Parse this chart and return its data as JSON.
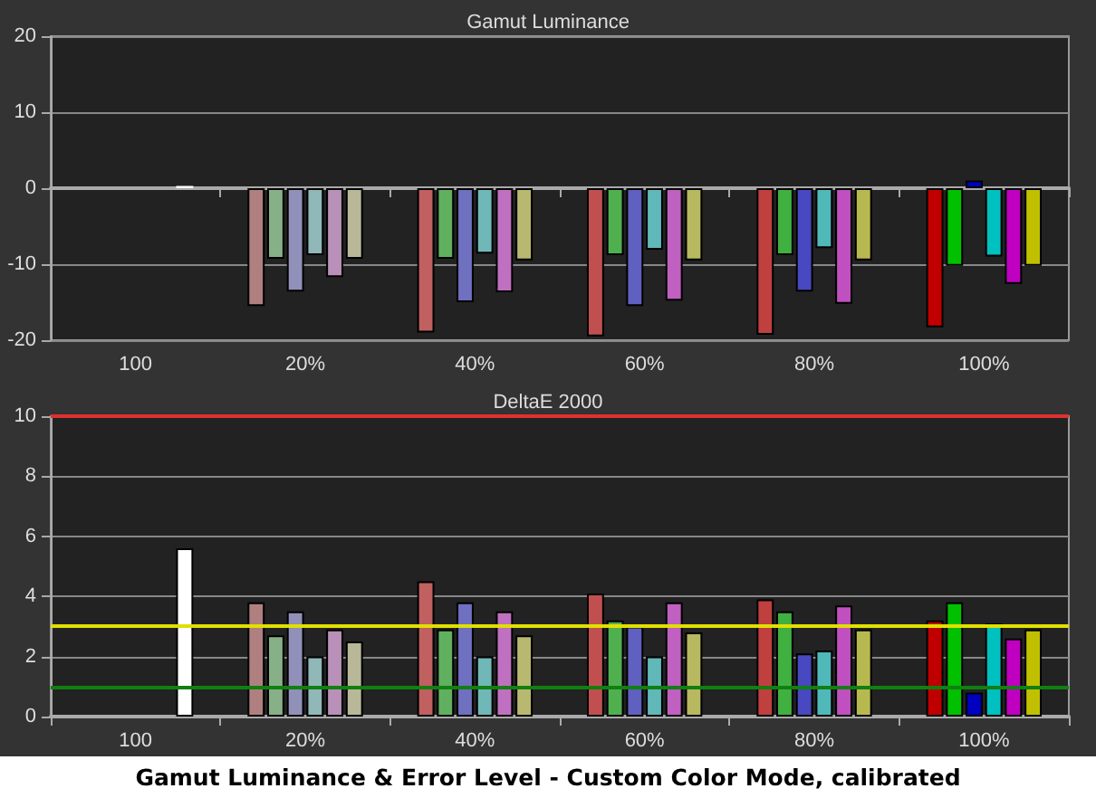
{
  "chart_data": [
    {
      "type": "bar",
      "title": "Gamut Luminance",
      "categories": [
        "100",
        "20%",
        "40%",
        "60%",
        "80%",
        "100%"
      ],
      "ylim": [
        -20,
        20
      ],
      "yticks": [
        -20,
        -10,
        0,
        10,
        20
      ],
      "grid": "y",
      "series": [
        {
          "colors": [
            "#b08080",
            "#b08080",
            "#c06060",
            "#c05050",
            "#c04040",
            "#c00000"
          ],
          "values": [
            null,
            -15.5,
            -19.0,
            -19.5,
            -19.3,
            -18.3
          ]
        },
        {
          "colors": [
            "#88b088",
            "#88b088",
            "#60b060",
            "#50b050",
            "#40b040",
            "#00c000"
          ],
          "values": [
            null,
            -9.3,
            -9.3,
            -8.8,
            -8.8,
            -10.2
          ]
        },
        {
          "colors": [
            "#9090b8",
            "#9090b8",
            "#7070c0",
            "#6060c0",
            "#4848c0",
            "#0000c0"
          ],
          "values": [
            null,
            -13.6,
            -15.0,
            -15.5,
            -13.6,
            1.0
          ]
        },
        {
          "colors": [
            "#90b8b8",
            "#90b8b8",
            "#70b8b8",
            "#60b8b8",
            "#50b8b8",
            "#00c0c0"
          ],
          "values": [
            null,
            -8.8,
            -8.6,
            -8.1,
            -7.9,
            -9.0
          ]
        },
        {
          "colors": [
            "#b890b8",
            "#b890b8",
            "#c070c0",
            "#c060c0",
            "#c050c0",
            "#c000c0"
          ],
          "values": [
            null,
            -11.7,
            -13.7,
            -14.8,
            -15.2,
            -12.6
          ]
        },
        {
          "colors": [
            "#ffffff",
            "#b8b898",
            "#b8b870",
            "#b8b860",
            "#b8b850",
            "#c0c000"
          ],
          "values": [
            0.3,
            -9.3,
            -9.5,
            -9.5,
            -9.5,
            -10.2
          ]
        }
      ]
    },
    {
      "type": "bar",
      "title": "DeltaE 2000",
      "categories": [
        "100",
        "20%",
        "40%",
        "60%",
        "80%",
        "100%"
      ],
      "ylim": [
        0,
        10
      ],
      "yticks": [
        0,
        2,
        4,
        6,
        8,
        10
      ],
      "grid": "y",
      "annotations": [
        "Gamut Luminance & Error Level - Custom Color Mode, calibrated"
      ],
      "ref_lines": [
        {
          "axis": "y",
          "value": 10,
          "color": "#e03030"
        },
        {
          "axis": "y",
          "value": 3,
          "color": "#e0e000"
        },
        {
          "axis": "y",
          "value": 1,
          "color": "#108010"
        }
      ],
      "series": [
        {
          "colors": [
            "#b08080",
            "#b08080",
            "#c06060",
            "#c05050",
            "#c04040",
            "#c00000"
          ],
          "values": [
            null,
            3.8,
            4.5,
            4.1,
            3.9,
            3.2
          ]
        },
        {
          "colors": [
            "#88b088",
            "#88b088",
            "#60b060",
            "#50b050",
            "#40b040",
            "#00c000"
          ],
          "values": [
            null,
            2.7,
            2.9,
            3.2,
            3.5,
            3.8
          ]
        },
        {
          "colors": [
            "#9090b8",
            "#9090b8",
            "#7070c0",
            "#6060c0",
            "#4848c0",
            "#0000c0"
          ],
          "values": [
            null,
            3.5,
            3.8,
            3.0,
            2.1,
            0.8
          ]
        },
        {
          "colors": [
            "#90b8b8",
            "#90b8b8",
            "#70b8b8",
            "#60b8b8",
            "#50b8b8",
            "#00c0c0"
          ],
          "values": [
            null,
            2.0,
            2.0,
            2.0,
            2.2,
            3.1
          ]
        },
        {
          "colors": [
            "#b890b8",
            "#b890b8",
            "#c070c0",
            "#c060c0",
            "#c050c0",
            "#c000c0"
          ],
          "values": [
            null,
            2.9,
            3.5,
            3.8,
            3.7,
            2.6
          ]
        },
        {
          "colors": [
            "#ffffff",
            "#b8b898",
            "#b8b870",
            "#b8b860",
            "#b8b850",
            "#c0c000"
          ],
          "values": [
            5.6,
            2.5,
            2.7,
            2.8,
            2.9,
            2.9
          ]
        }
      ]
    }
  ]
}
